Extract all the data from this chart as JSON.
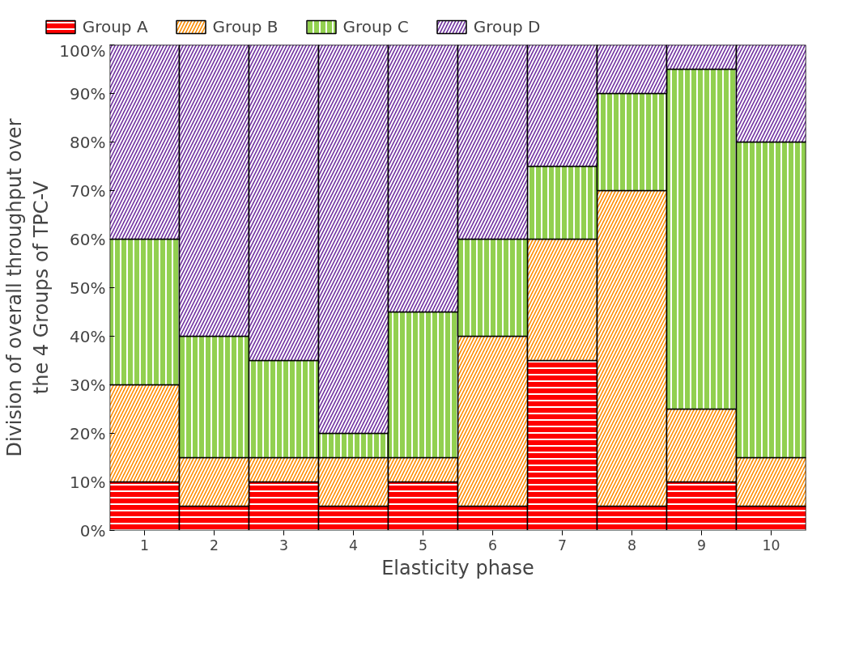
{
  "chart_data": {
    "type": "bar",
    "stacked": true,
    "xlabel": "Elasticity phase",
    "ylabel": "Division of overall throughput over the 4 Groups of TPC-V",
    "categories": [
      "1",
      "2",
      "3",
      "4",
      "5",
      "6",
      "7",
      "8",
      "9",
      "10"
    ],
    "series": [
      {
        "name": "Group A",
        "color": "#ff0000",
        "values": [
          10,
          5,
          10,
          5,
          10,
          5,
          35,
          5,
          10,
          5
        ]
      },
      {
        "name": "Group B",
        "color": "#ff8c00",
        "values": [
          20,
          10,
          5,
          10,
          5,
          35,
          25,
          65,
          15,
          10
        ]
      },
      {
        "name": "Group C",
        "color": "#92d050",
        "values": [
          30,
          25,
          20,
          5,
          30,
          20,
          15,
          20,
          70,
          65
        ]
      },
      {
        "name": "Group D",
        "color": "#7030a0",
        "values": [
          40,
          60,
          65,
          80,
          55,
          40,
          25,
          10,
          5,
          20
        ]
      }
    ],
    "ylim": [
      0,
      100
    ],
    "yticks": [
      {
        "value": 0,
        "label": "0%"
      },
      {
        "value": 10,
        "label": "10%"
      },
      {
        "value": 20,
        "label": "20%"
      },
      {
        "value": 30,
        "label": "30%"
      },
      {
        "value": 40,
        "label": "40%"
      },
      {
        "value": 50,
        "label": "50%"
      },
      {
        "value": 60,
        "label": "60%"
      },
      {
        "value": 70,
        "label": "70%"
      },
      {
        "value": 80,
        "label": "80%"
      },
      {
        "value": 90,
        "label": "90%"
      },
      {
        "value": 100,
        "label": "100%"
      }
    ],
    "legend": "top"
  }
}
